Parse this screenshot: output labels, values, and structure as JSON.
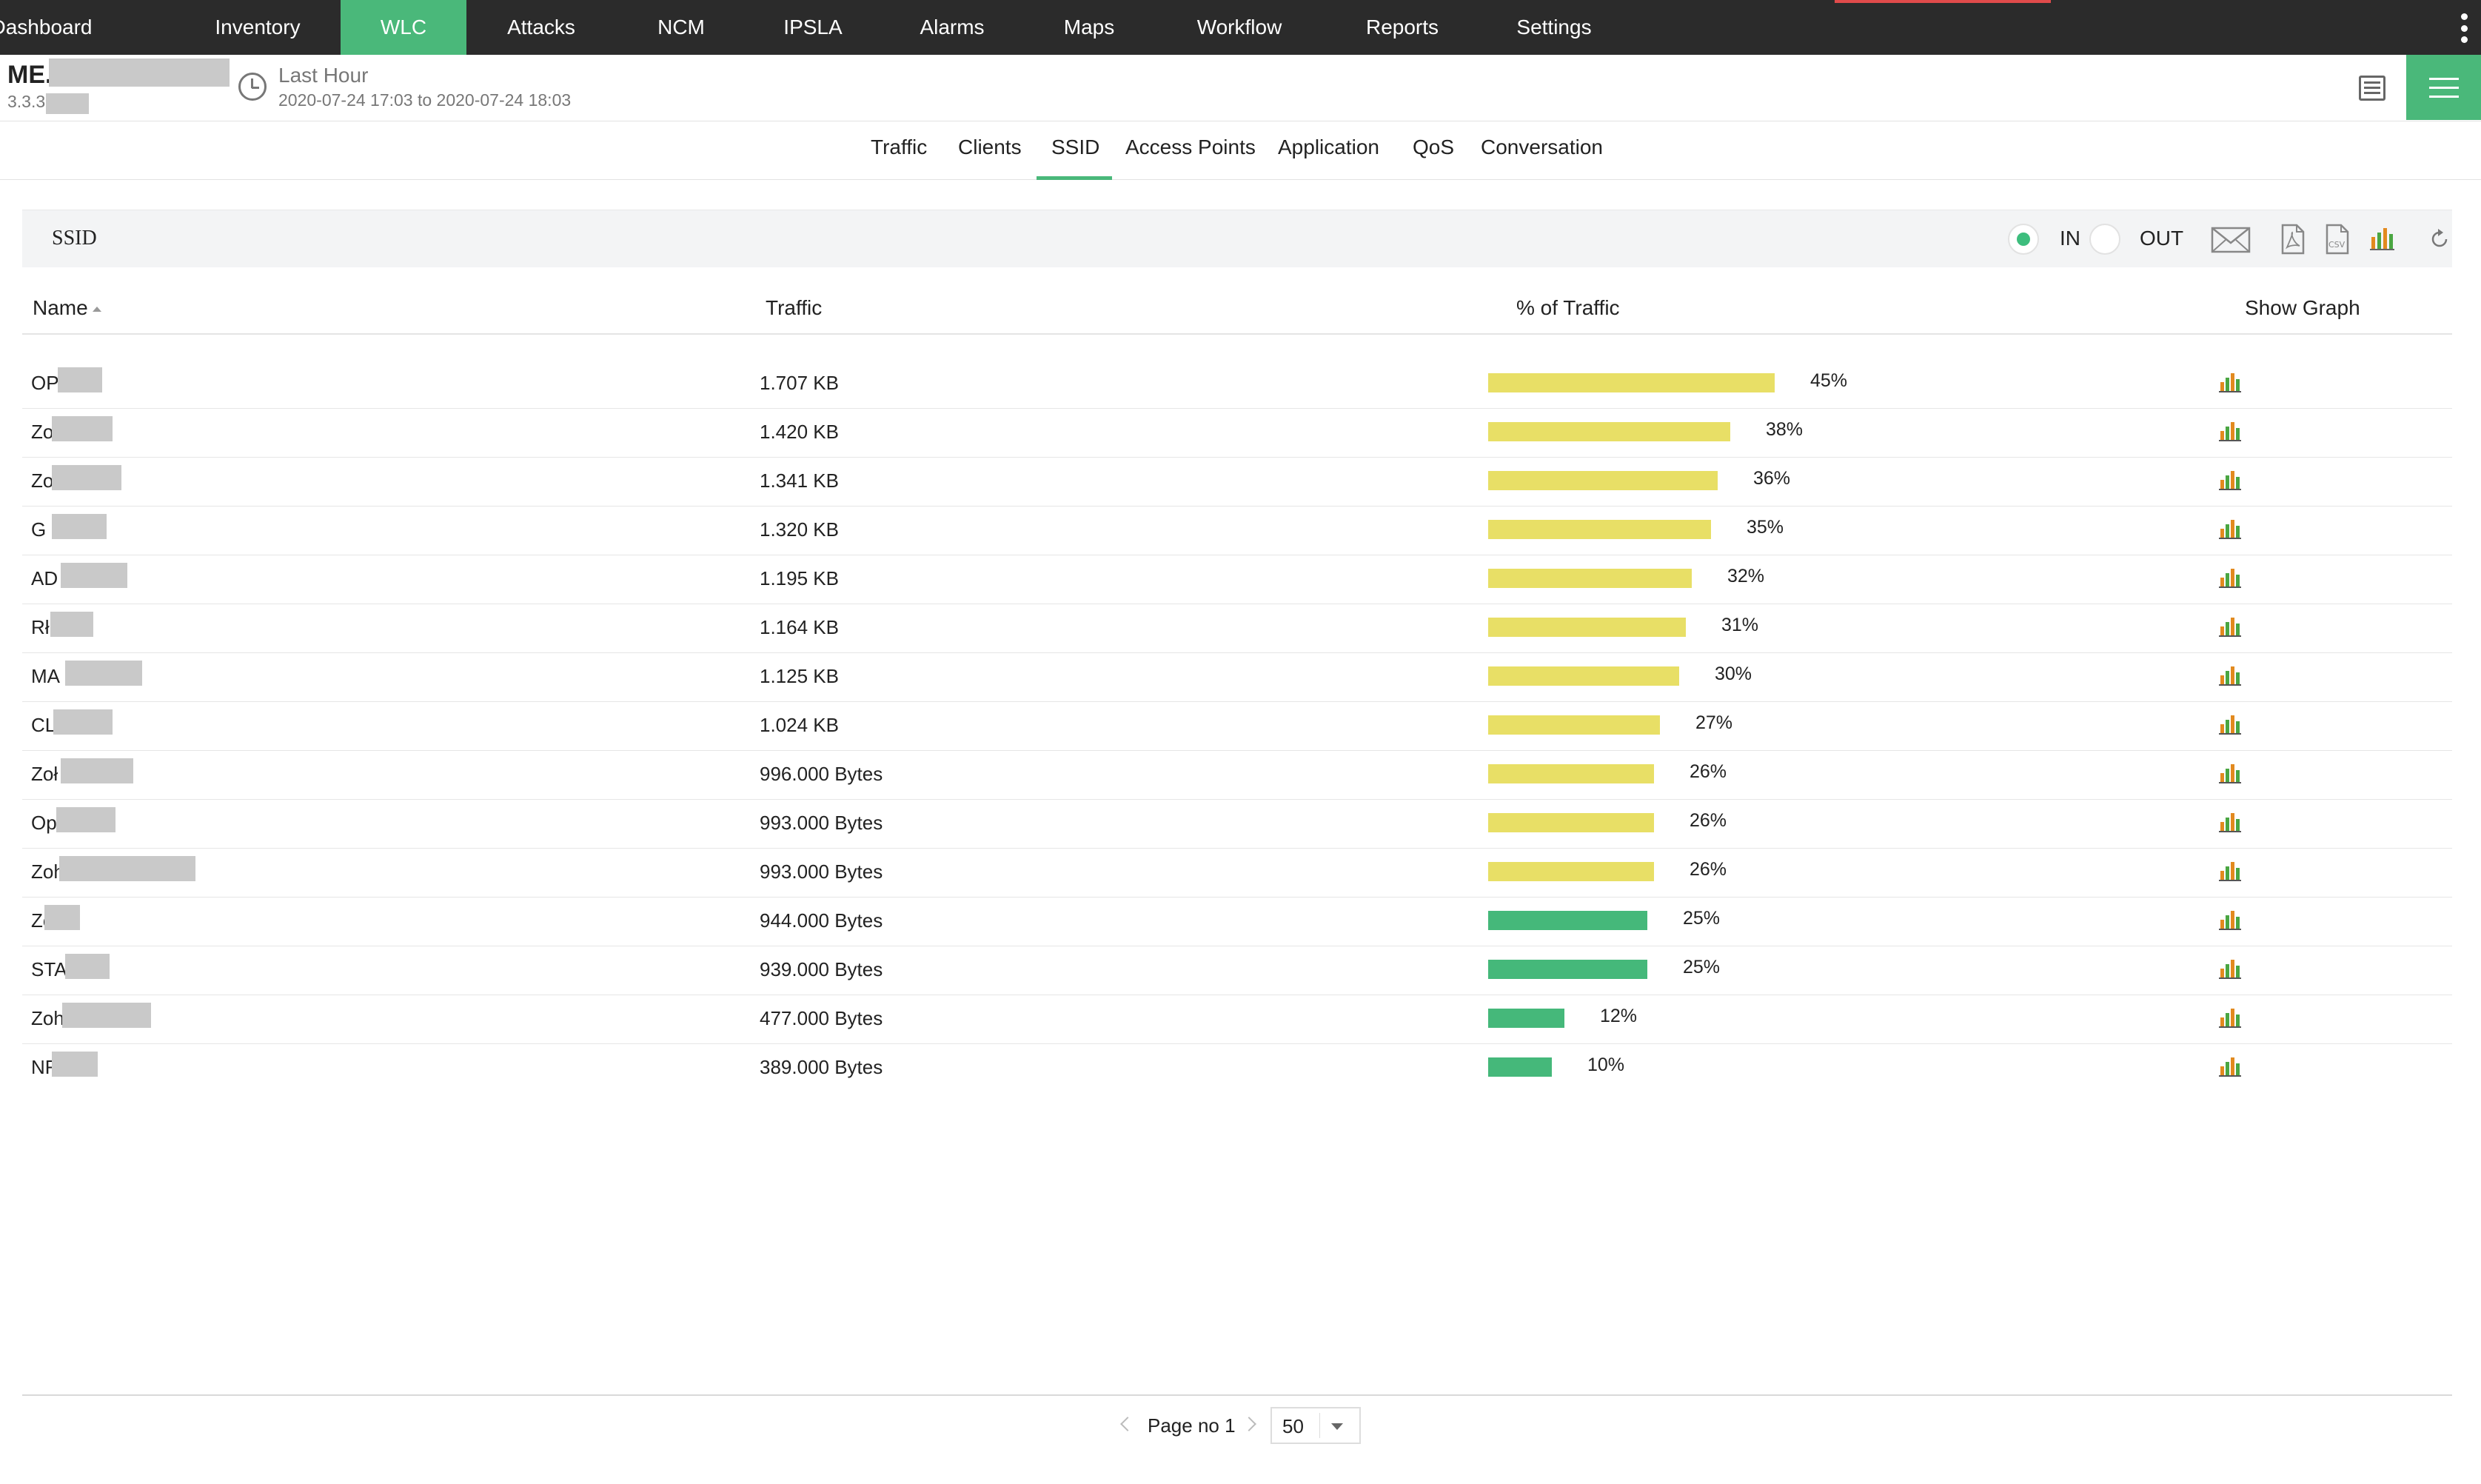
{
  "nav": {
    "items": [
      "Dashboard",
      "Inventory",
      "WLC",
      "Attacks",
      "NCM",
      "IPSLA",
      "Alarms",
      "Maps",
      "Workflow",
      "Reports",
      "Settings"
    ],
    "active": "WLC"
  },
  "device": {
    "name": "ME.",
    "ip": "3.3.3",
    "period_label": "Last Hour",
    "period_range": "2020-07-24 17:03 to 2020-07-24 18:03"
  },
  "tabs": {
    "items": [
      "Traffic",
      "Clients",
      "SSID",
      "Access Points",
      "Application",
      "QoS",
      "Conversation"
    ],
    "active": "SSID"
  },
  "panel": {
    "title": "SSID",
    "in_label": "IN",
    "out_label": "OUT",
    "selected_direction": "IN",
    "tool_icons": [
      "mail-icon",
      "pdf-icon",
      "csv-icon",
      "bar-chart-icon",
      "refresh-icon"
    ]
  },
  "table": {
    "headers": {
      "name": "Name",
      "traffic": "Traffic",
      "percent": "% of Traffic",
      "graph": "Show Graph"
    },
    "rows": [
      {
        "name": "OP",
        "traffic": "1.707 KB",
        "percent": 45,
        "percent_label": "45%",
        "color": "#e8df66"
      },
      {
        "name": "Zo",
        "traffic": "1.420 KB",
        "percent": 38,
        "percent_label": "38%",
        "color": "#e8df66"
      },
      {
        "name": "Zo",
        "traffic": "1.341 KB",
        "percent": 36,
        "percent_label": "36%",
        "color": "#e8df66"
      },
      {
        "name": "G",
        "traffic": "1.320 KB",
        "percent": 35,
        "percent_label": "35%",
        "color": "#e8df66"
      },
      {
        "name": "AD",
        "traffic": "1.195 KB",
        "percent": 32,
        "percent_label": "32%",
        "color": "#e8df66"
      },
      {
        "name": "Rł",
        "traffic": "1.164 KB",
        "percent": 31,
        "percent_label": "31%",
        "color": "#e8df66"
      },
      {
        "name": "MA",
        "traffic": "1.125 KB",
        "percent": 30,
        "percent_label": "30%",
        "color": "#e8df66"
      },
      {
        "name": "CL",
        "traffic": "1.024 KB",
        "percent": 27,
        "percent_label": "27%",
        "color": "#e8df66"
      },
      {
        "name": "Zoł",
        "traffic": "996.000 Bytes",
        "percent": 26,
        "percent_label": "26%",
        "color": "#e8df66"
      },
      {
        "name": "Op",
        "traffic": "993.000 Bytes",
        "percent": 26,
        "percent_label": "26%",
        "color": "#e8df66"
      },
      {
        "name": "Zoh",
        "traffic": "993.000 Bytes",
        "percent": 26,
        "percent_label": "26%",
        "color": "#e8df66"
      },
      {
        "name": "Zc",
        "traffic": "944.000 Bytes",
        "percent": 25,
        "percent_label": "25%",
        "color": "#45b87a"
      },
      {
        "name": "STA",
        "traffic": "939.000 Bytes",
        "percent": 25,
        "percent_label": "25%",
        "color": "#45b87a"
      },
      {
        "name": "Zoh",
        "traffic": "477.000 Bytes",
        "percent": 12,
        "percent_label": "12%",
        "color": "#45b87a"
      },
      {
        "name": "NF",
        "traffic": "389.000 Bytes",
        "percent": 10,
        "percent_label": "10%",
        "color": "#45b87a"
      }
    ]
  },
  "pager": {
    "label": "Page no 1",
    "page_size": "50"
  }
}
